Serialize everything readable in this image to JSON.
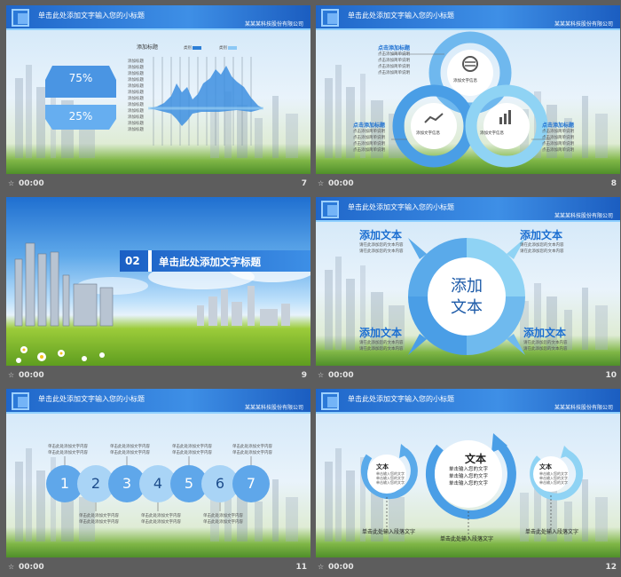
{
  "slides": [
    {
      "time": "00:00",
      "number": "7",
      "header": {
        "title": "单击此处添加文字输入您的小标题",
        "company": "某某某科技股份有限公司"
      },
      "legend_title": "添加标题",
      "legend_items": [
        "类别",
        "类别"
      ],
      "percent_top": "75%",
      "percent_bottom": "25%",
      "row_labels": [
        "添加标题",
        "添加标题",
        "添加标题",
        "添加标题",
        "添加标题",
        "添加标题",
        "添加标题",
        "添加标题",
        "添加标题",
        "添加标题",
        "添加标题",
        "添加标题"
      ]
    },
    {
      "time": "00:00",
      "number": "8",
      "header": {
        "title": "单击此处添加文字输入您的小标题",
        "company": "某某某科技股份有限公司"
      },
      "circle_label": "添加文字信息",
      "heading": "点击添加标题",
      "desc_lines": [
        "点击添加简单说明",
        "点击添加简单说明",
        "点击添加简单说明",
        "点击添加简单说明"
      ]
    },
    {
      "time": "00:00",
      "number": "9",
      "badge": "02",
      "title": "单击此处添加文字标题"
    },
    {
      "time": "00:00",
      "number": "10",
      "header": {
        "title": "单击此处添加文字输入您的小标题",
        "company": "某某某科技股份有限公司"
      },
      "center_line1": "添加",
      "center_line2": "文本",
      "corner_title": "添加文本",
      "corner_desc": "请在此添加您的文本内容"
    },
    {
      "time": "00:00",
      "number": "11",
      "header": {
        "title": "单击此处添加文字输入您的小标题",
        "company": "某某某科技股份有限公司"
      },
      "circles": [
        "1",
        "2",
        "3",
        "4",
        "5",
        "6",
        "7"
      ],
      "desc": "单击此处添加文字内容"
    },
    {
      "time": "00:00",
      "number": "12",
      "header": {
        "title": "单击此处添加文字输入您的小标题",
        "company": "某某某科技股份有限公司"
      },
      "center_title": "文本",
      "side_title": "文本",
      "center_lines": [
        "单击输入您的文字",
        "单击输入您的文字",
        "单击输入您的文字"
      ],
      "side_line": "单击输入您的文字",
      "caption": "单击此处输入段落文字"
    }
  ],
  "colors": {
    "accent": "#2e7fd6",
    "light": "#9fd4f5",
    "header": "#1f66c9"
  }
}
